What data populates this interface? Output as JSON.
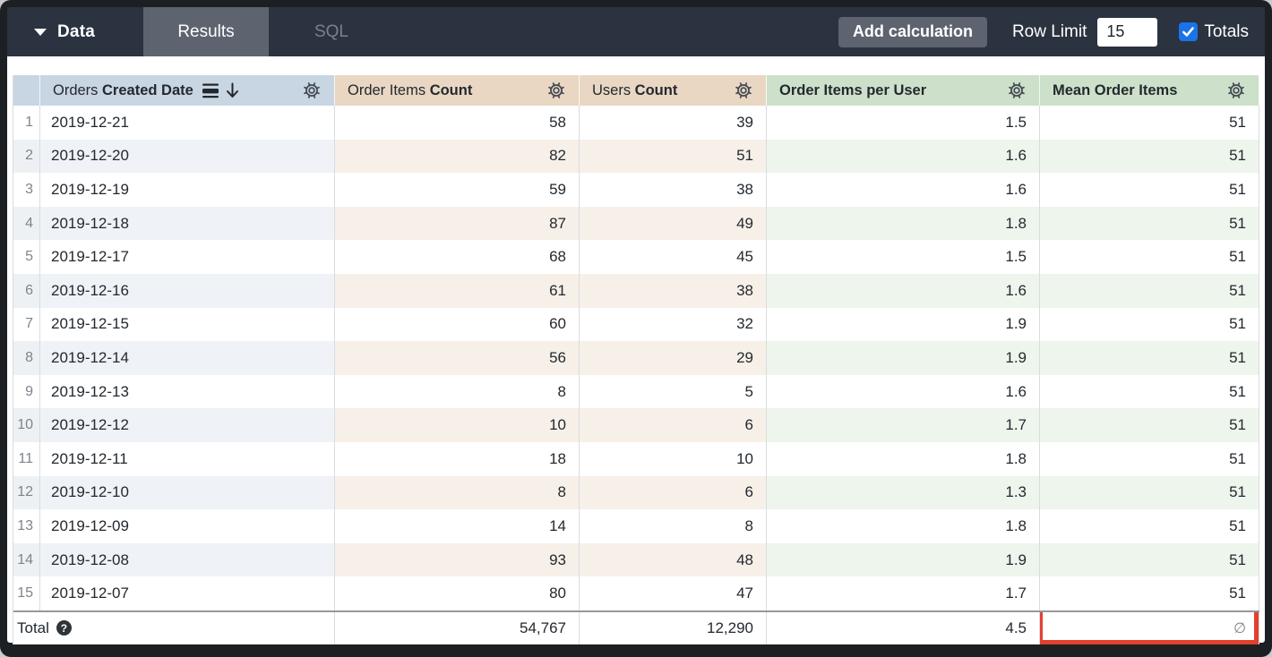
{
  "topbar": {
    "data_label": "Data",
    "tabs": [
      {
        "label": "Results",
        "active": true
      },
      {
        "label": "SQL",
        "active": false
      }
    ],
    "add_calculation_label": "Add calculation",
    "row_limit_label": "Row Limit",
    "row_limit_value": "15",
    "totals_label": "Totals",
    "totals_checked": true
  },
  "colors": {
    "topbar_bg": "#2b3240",
    "active_tab_bg": "#5d6470",
    "checkbox_blue": "#1a73e8",
    "dimension_header": "#c8d5e2",
    "measure_header": "#e9d7c3",
    "calculation_header": "#cde0ca",
    "highlight_red": "#e2402f"
  },
  "table": {
    "columns": [
      {
        "key": "orders-created-date",
        "view": "Orders",
        "field": "Created Date",
        "kind": "dim",
        "sorted": true,
        "sort_direction": "descending",
        "icons": [
          "sort-bars-icon",
          "arrow-down-icon",
          "gear-icon"
        ]
      },
      {
        "key": "order-items-count",
        "view": "Order Items",
        "field": "Count",
        "kind": "measure",
        "icons": [
          "gear-icon"
        ]
      },
      {
        "key": "users-count",
        "view": "Users",
        "field": "Count",
        "kind": "measure",
        "icons": [
          "gear-icon"
        ]
      },
      {
        "key": "order-items-per-user",
        "label": "Order Items per User",
        "kind": "calc",
        "icons": [
          "gear-icon"
        ]
      },
      {
        "key": "mean-order-items",
        "label": "Mean Order Items",
        "kind": "calc",
        "icons": [
          "gear-icon"
        ]
      }
    ],
    "rows": [
      [
        "1",
        "2019-12-21",
        "58",
        "39",
        "1.5",
        "51"
      ],
      [
        "2",
        "2019-12-20",
        "82",
        "51",
        "1.6",
        "51"
      ],
      [
        "3",
        "2019-12-19",
        "59",
        "38",
        "1.6",
        "51"
      ],
      [
        "4",
        "2019-12-18",
        "87",
        "49",
        "1.8",
        "51"
      ],
      [
        "5",
        "2019-12-17",
        "68",
        "45",
        "1.5",
        "51"
      ],
      [
        "6",
        "2019-12-16",
        "61",
        "38",
        "1.6",
        "51"
      ],
      [
        "7",
        "2019-12-15",
        "60",
        "32",
        "1.9",
        "51"
      ],
      [
        "8",
        "2019-12-14",
        "56",
        "29",
        "1.9",
        "51"
      ],
      [
        "9",
        "2019-12-13",
        "8",
        "5",
        "1.6",
        "51"
      ],
      [
        "10",
        "2019-12-12",
        "10",
        "6",
        "1.7",
        "51"
      ],
      [
        "11",
        "2019-12-11",
        "18",
        "10",
        "1.8",
        "51"
      ],
      [
        "12",
        "2019-12-10",
        "8",
        "6",
        "1.3",
        "51"
      ],
      [
        "13",
        "2019-12-09",
        "14",
        "8",
        "1.8",
        "51"
      ],
      [
        "14",
        "2019-12-08",
        "93",
        "48",
        "1.9",
        "51"
      ],
      [
        "15",
        "2019-12-07",
        "80",
        "47",
        "1.7",
        "51"
      ]
    ],
    "total": {
      "label": "Total",
      "help_icon": "question-mark-icon",
      "values": [
        "54,767",
        "12,290",
        "4.5",
        "∅"
      ],
      "highlighted_column": "mean-order-items"
    }
  }
}
